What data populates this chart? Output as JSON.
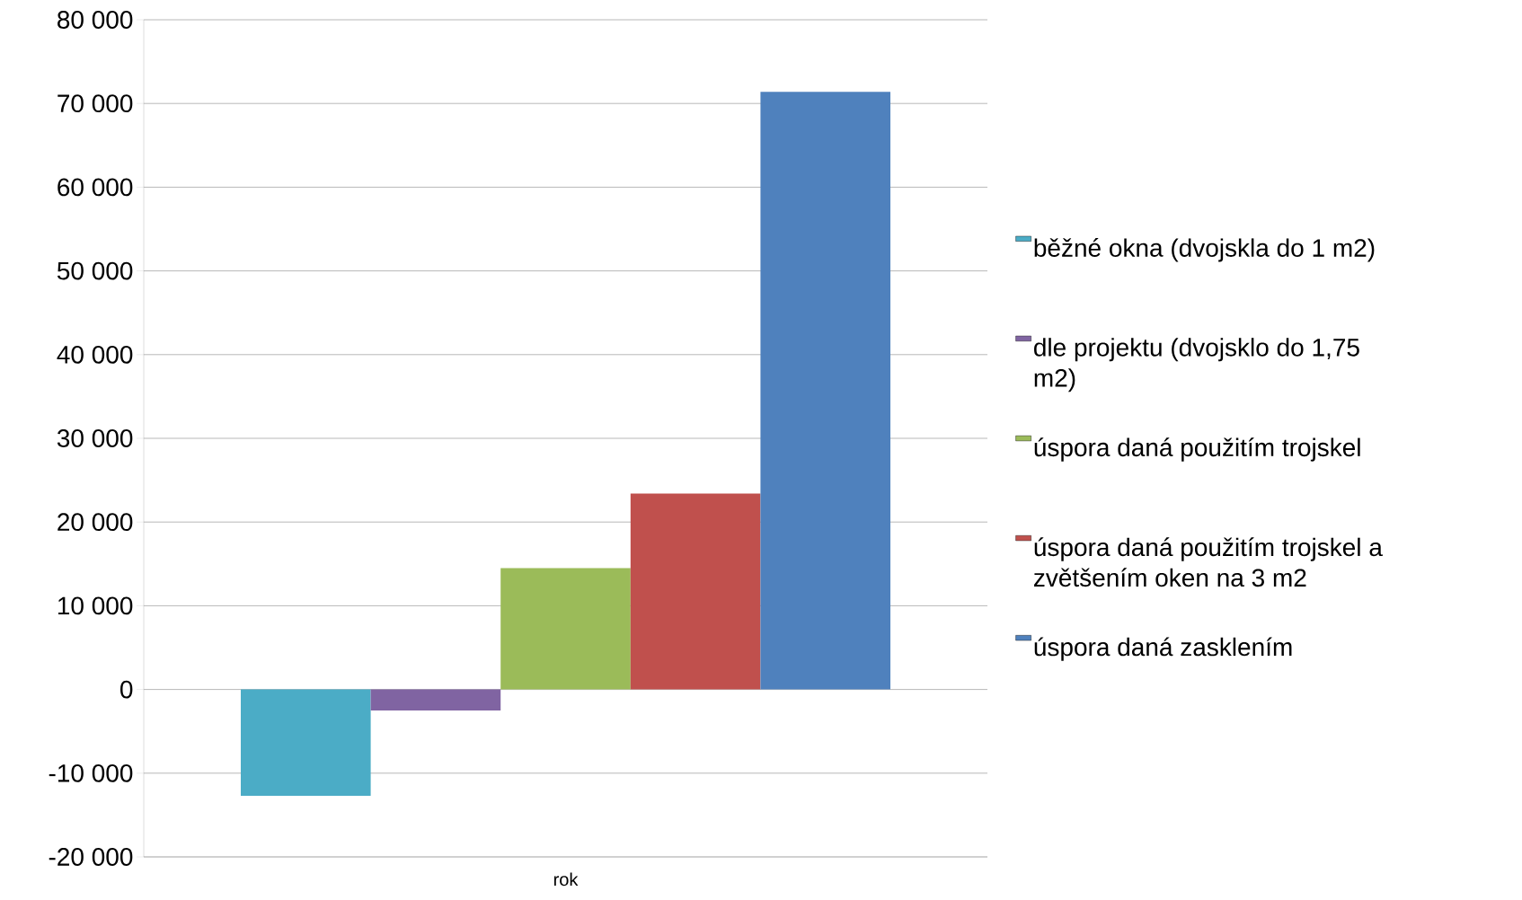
{
  "chart_data": {
    "type": "bar",
    "categories": [
      "rok"
    ],
    "series": [
      {
        "name": "běžné okna (dvojskla do 1 m2)",
        "color": "#4bacc6",
        "values": [
          -12700
        ]
      },
      {
        "name": "dle projektu (dvojsklo do 1,75 m2)",
        "color": "#8064a2",
        "values": [
          -2500
        ]
      },
      {
        "name": "úspora daná použitím trojskel",
        "color": "#9bbb59",
        "values": [
          14500
        ]
      },
      {
        "name": "úspora daná použitím trojskel a zvětšením oken na 3 m2",
        "color": "#c0504d",
        "values": [
          23400
        ]
      },
      {
        "name": "úspora daná zasklením",
        "color": "#4f81bd",
        "values": [
          71400
        ]
      }
    ],
    "ylim": [
      -20000,
      80000
    ],
    "yticks": [
      {
        "value": -20000,
        "label": "-20 000"
      },
      {
        "value": -10000,
        "label": "-10 000"
      },
      {
        "value": 0,
        "label": "0"
      },
      {
        "value": 10000,
        "label": "10 000"
      },
      {
        "value": 20000,
        "label": "20 000"
      },
      {
        "value": 30000,
        "label": "30 000"
      },
      {
        "value": 40000,
        "label": "40 000"
      },
      {
        "value": 50000,
        "label": "50 000"
      },
      {
        "value": 60000,
        "label": "60 000"
      },
      {
        "value": 70000,
        "label": "70 000"
      },
      {
        "value": 80000,
        "label": "80 000"
      }
    ],
    "grid": "y",
    "legend": "right"
  }
}
